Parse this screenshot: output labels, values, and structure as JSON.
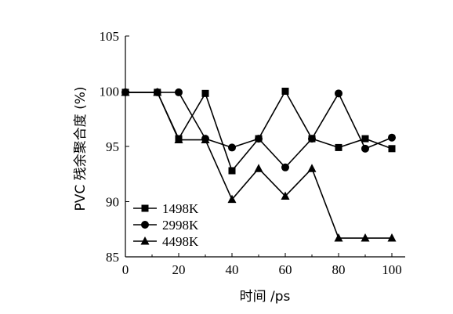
{
  "chart_data": {
    "type": "line",
    "title": "",
    "xlabel": "时间 /ps",
    "ylabel": "PVC 残余聚合度 (%)",
    "xlim": [
      0,
      100
    ],
    "ylim": [
      85,
      105
    ],
    "x_ticks": [
      0,
      20,
      40,
      60,
      80,
      100
    ],
    "y_ticks": [
      85,
      90,
      95,
      100,
      105
    ],
    "x_tick_labels": [
      "0",
      "20",
      "40",
      "60",
      "80",
      "100"
    ],
    "y_tick_labels": [
      "85",
      "90",
      "95",
      "100",
      "105"
    ],
    "grid": false,
    "legend_position": "bottom-left",
    "series": [
      {
        "name": "1498K",
        "marker": "square",
        "x": [
          0,
          12,
          20,
          30,
          40,
          50,
          60,
          70,
          80,
          90,
          100
        ],
        "values": [
          99.9,
          99.9,
          95.7,
          99.8,
          92.8,
          95.7,
          100.0,
          95.7,
          94.9,
          95.7,
          94.8
        ]
      },
      {
        "name": "2998K",
        "marker": "circle",
        "x": [
          0,
          12,
          20,
          30,
          40,
          50,
          60,
          70,
          80,
          90,
          100
        ],
        "values": [
          99.9,
          99.9,
          99.9,
          95.7,
          94.9,
          95.7,
          93.1,
          95.7,
          99.8,
          94.8,
          95.8
        ]
      },
      {
        "name": "4498K",
        "marker": "triangle",
        "x": [
          0,
          12,
          20,
          30,
          40,
          50,
          60,
          70,
          80,
          90,
          100
        ],
        "values": [
          99.9,
          99.9,
          95.6,
          95.6,
          90.2,
          93.0,
          90.5,
          93.0,
          86.7,
          86.7,
          86.7
        ]
      }
    ]
  }
}
